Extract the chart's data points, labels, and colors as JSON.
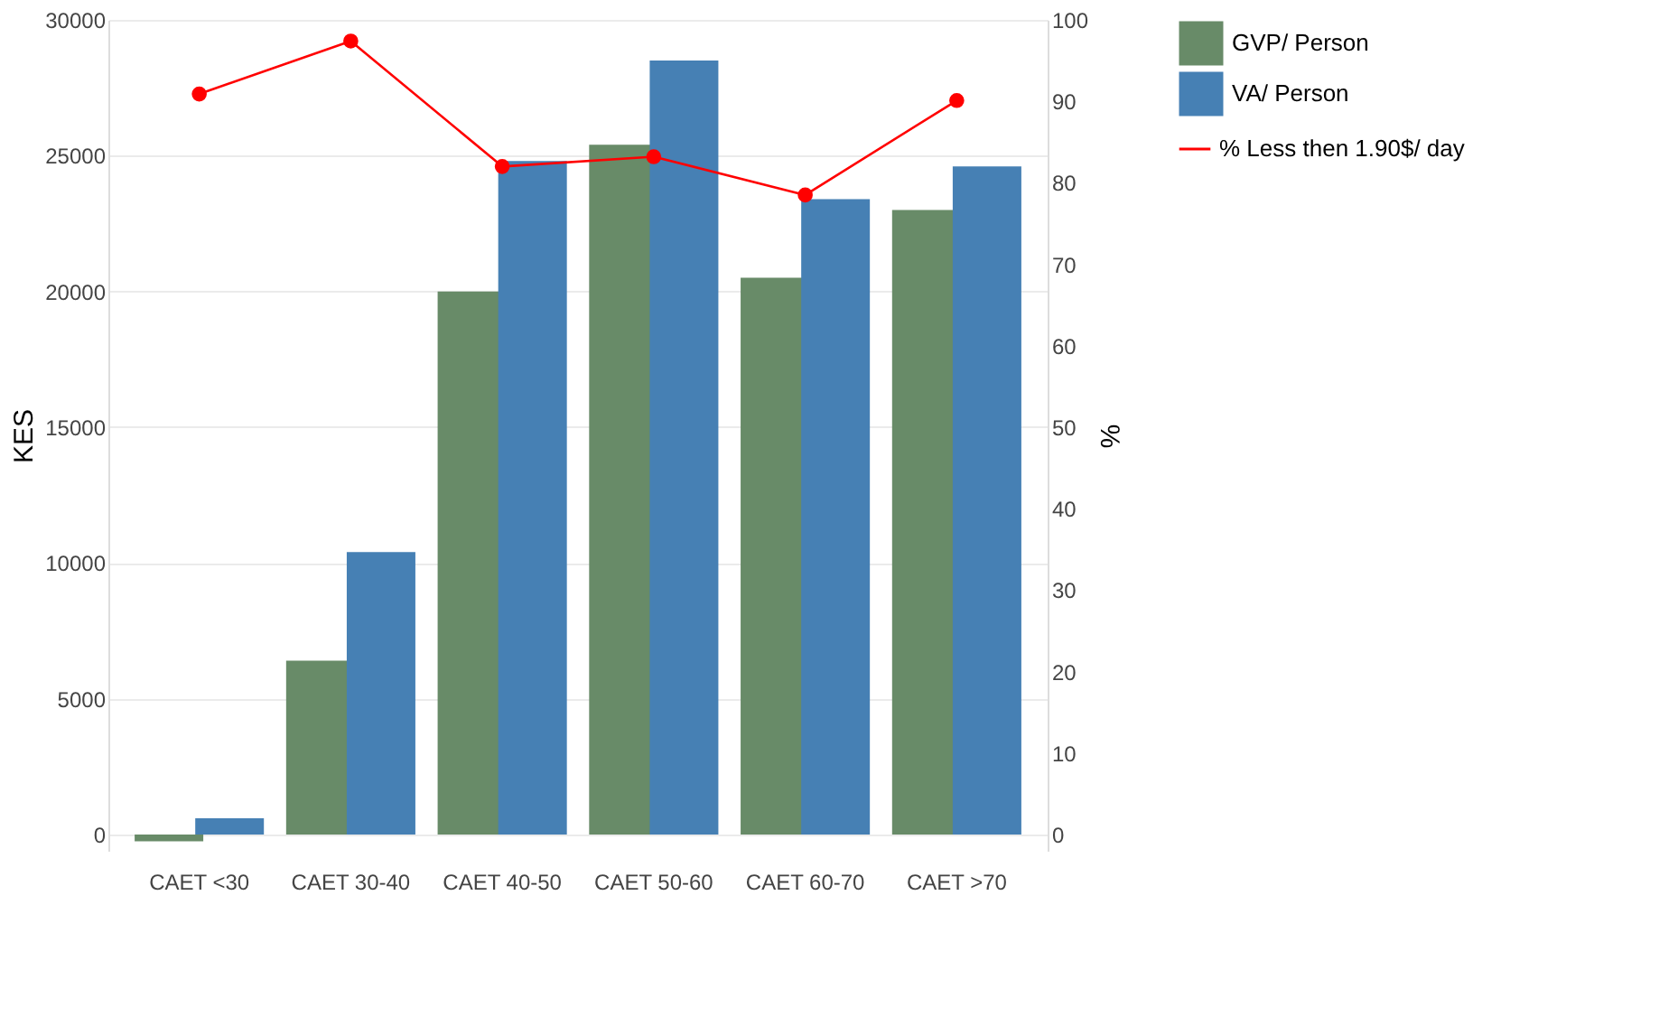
{
  "chart_data": {
    "type": "bar",
    "categories": [
      "CAET <30",
      "CAET 30-40",
      "CAET 40-50",
      "CAET 50-60",
      "CAET 60-70",
      "CAET >70"
    ],
    "ylabel": "KES",
    "y2label": "%",
    "ylim": [
      -600,
      30000
    ],
    "yticks": [
      0,
      5000,
      10000,
      15000,
      20000,
      25000,
      30000
    ],
    "y2lim": [
      -2,
      100
    ],
    "y2ticks": [
      0,
      10,
      20,
      30,
      40,
      50,
      60,
      70,
      80,
      90,
      100
    ],
    "grid": "y",
    "legend": "right",
    "series": [
      {
        "name": "GVP/ Person",
        "color": "#688b68",
        "values": [
          -250,
          6400,
          20000,
          25400,
          20500,
          23000
        ]
      },
      {
        "name": "VA/ Person",
        "color": "#4680b4",
        "values": [
          600,
          10400,
          24800,
          28500,
          23400,
          24600
        ]
      },
      {
        "name": "% Less then 1.90$/ day",
        "type": "line",
        "axis": "y2",
        "color": "#ff0000",
        "marker": "circle",
        "values": [
          90.9,
          97.4,
          82.0,
          83.2,
          78.5,
          90.1
        ]
      }
    ]
  }
}
